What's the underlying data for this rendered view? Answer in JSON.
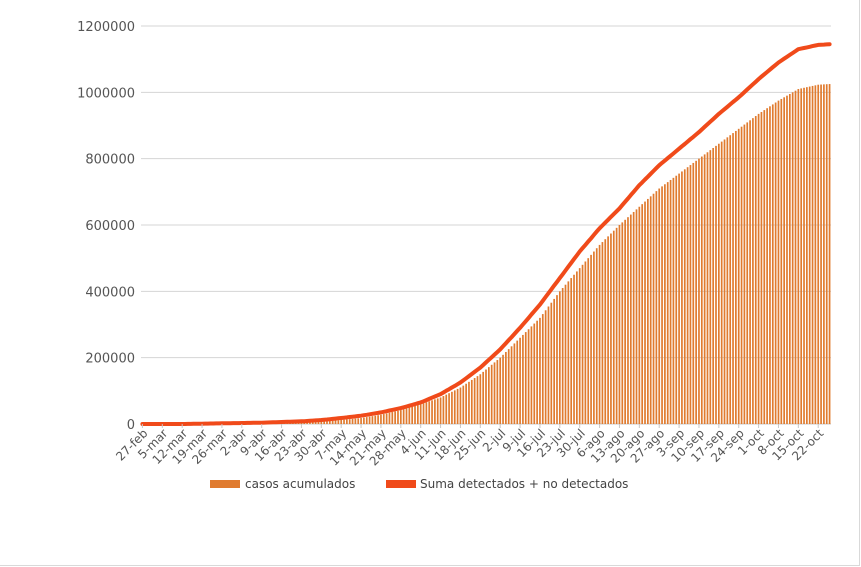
{
  "chart_data": {
    "type": "bar",
    "title": "",
    "xlabel": "",
    "ylabel": "",
    "ylim": [
      0,
      1200000
    ],
    "yticks": [
      0,
      200000,
      400000,
      600000,
      800000,
      1000000,
      1200000
    ],
    "ytick_labels": [
      "0",
      "200000",
      "400000",
      "600000",
      "800000",
      "1000000",
      "1200000"
    ],
    "x_tick_labels": [
      "27-feb",
      "5-mar",
      "12-mar",
      "19-mar",
      "26-mar",
      "2-abr",
      "9-abr",
      "16-abr",
      "23-abr",
      "30-abr",
      "7-may",
      "14-may",
      "21-may",
      "28-may",
      "4-jun",
      "11-jun",
      "18-jun",
      "25-jun",
      "2-jul",
      "9-jul",
      "16-jul",
      "23-jul",
      "30-jul",
      "6-ago",
      "13-ago",
      "20-ago",
      "27-ago",
      "3-sep",
      "10-sep",
      "17-sep",
      "24-sep",
      "1-oct",
      "8-oct",
      "15-oct",
      "22-oct"
    ],
    "days_between_ticks": 7,
    "grid": true,
    "legend_position": "bottom",
    "colors": {
      "bars": "#e07b2f",
      "line": "#f04a1a"
    },
    "series": [
      {
        "name": "casos acumulados",
        "kind": "bar",
        "weekly_values": [
          0,
          0,
          0,
          1000,
          1500,
          2500,
          3000,
          4000,
          5000,
          8000,
          12000,
          18000,
          28000,
          42000,
          60000,
          80000,
          110000,
          150000,
          200000,
          260000,
          320000,
          400000,
          470000,
          540000,
          600000,
          655000,
          710000,
          755000,
          800000,
          845000,
          890000,
          935000,
          975000,
          1010000,
          1023000
        ],
        "last_value": 1025000
      },
      {
        "name": "Suma detectados + no detectados",
        "kind": "line",
        "weekly_values": [
          0,
          0,
          0,
          1000,
          2000,
          3000,
          4000,
          6000,
          8000,
          12000,
          18000,
          25000,
          35000,
          48000,
          65000,
          90000,
          125000,
          170000,
          225000,
          290000,
          360000,
          440000,
          520000,
          590000,
          650000,
          720000,
          780000,
          830000,
          880000,
          935000,
          985000,
          1040000,
          1090000,
          1130000,
          1143000
        ],
        "last_value": 1145000
      }
    ]
  }
}
